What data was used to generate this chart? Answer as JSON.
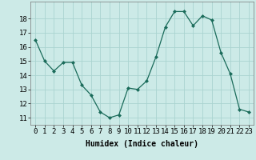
{
  "x": [
    0,
    1,
    2,
    3,
    4,
    5,
    6,
    7,
    8,
    9,
    10,
    11,
    12,
    13,
    14,
    15,
    16,
    17,
    18,
    19,
    20,
    21,
    22,
    23
  ],
  "y": [
    16.5,
    15.0,
    14.3,
    14.9,
    14.9,
    13.3,
    12.6,
    11.4,
    11.0,
    11.2,
    13.1,
    13.0,
    13.6,
    15.3,
    17.4,
    18.5,
    18.5,
    17.5,
    18.2,
    17.9,
    15.6,
    14.1,
    11.6,
    11.4
  ],
  "line_color": "#1a6b5a",
  "marker": "D",
  "marker_size": 2.0,
  "bg_color": "#cceae7",
  "grid_color": "#aad4d0",
  "xlabel": "Humidex (Indice chaleur)",
  "ylabel_ticks": [
    11,
    12,
    13,
    14,
    15,
    16,
    17,
    18
  ],
  "ylim": [
    10.5,
    19.2
  ],
  "xlim": [
    -0.5,
    23.5
  ],
  "label_fontsize": 7,
  "tick_fontsize": 6.5
}
